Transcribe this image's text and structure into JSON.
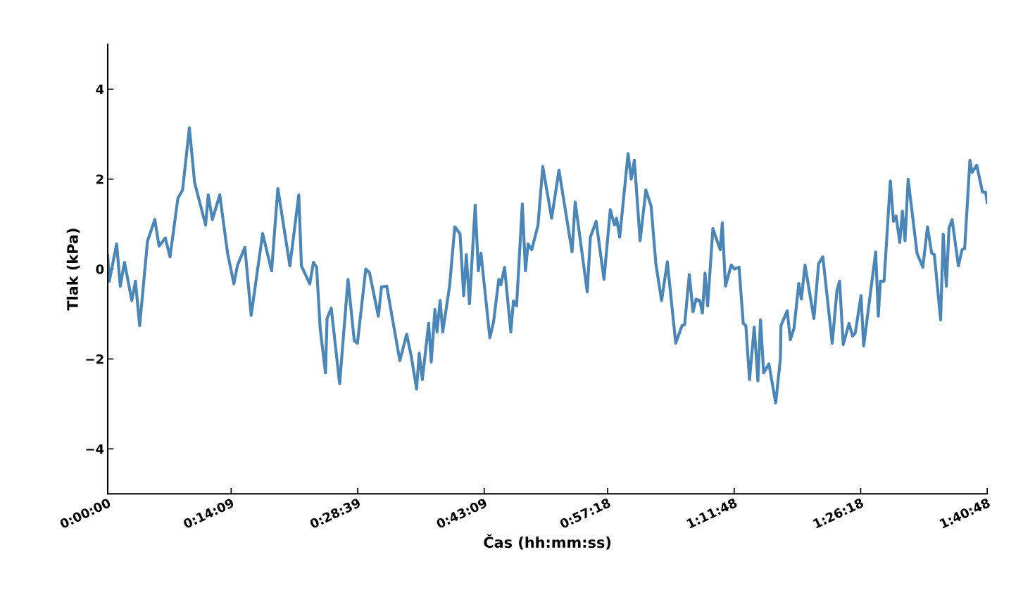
{
  "chart_data": {
    "type": "line",
    "xlabel": "Čas (hh:mm:ss)",
    "ylabel": "Tlak (kPa)",
    "x": [
      0,
      0.003,
      0.017,
      0.024,
      0.032,
      0.046,
      0.053,
      0.061,
      0.076,
      0.09,
      0.098,
      0.11,
      0.119,
      0.134,
      0.143,
      0.156,
      0.166,
      0.187,
      0.192,
      0.2,
      0.214,
      0.229,
      0.241,
      0.248,
      0.262,
      0.274,
      0.296,
      0.313,
      0.325,
      0.348,
      0.365,
      0.37,
      0.386,
      0.393,
      0.399,
      0.406,
      0.416,
      0.419,
      0.427,
      0.443,
      0.459,
      0.471,
      0.477,
      0.493,
      0.5,
      0.517,
      0.523,
      0.533,
      0.558,
      0.571,
      0.58,
      0.59,
      0.595,
      0.601,
      0.613,
      0.618,
      0.625,
      0.629,
      0.635,
      0.64,
      0.653,
      0.663,
      0.673,
      0.68,
      0.685,
      0.691,
      0.702,
      0.708,
      0.713,
      0.73,
      0.737,
      0.747,
      0.751,
      0.758,
      0.77,
      0.775,
      0.781,
      0.792,
      0.798,
      0.803,
      0.81,
      0.822,
      0.831,
      0.848,
      0.862,
      0.887,
      0.893,
      0.916,
      0.922,
      0.933,
      0.948,
      0.96,
      0.968,
      0.972,
      0.978,
      0.994,
      1.0,
      1.006,
      1.017,
      1.028,
      1.038,
      1.047,
      1.058,
      1.069,
      1.085,
      1.097,
      1.102,
      1.111,
      1.118,
      1.124,
      1.131,
      1.136,
      1.141,
      1.146,
      1.156,
      1.17,
      1.174,
      1.18,
      1.191,
      1.197,
      1.206,
      1.214,
      1.219,
      1.226,
      1.235,
      1.242,
      1.247,
      1.253,
      1.263,
      1.276,
      1.285,
      1.286,
      1.298,
      1.304,
      1.311,
      1.32,
      1.325,
      1.332,
      1.349,
      1.358,
      1.366,
      1.384,
      1.393,
      1.398,
      1.405,
      1.416,
      1.423,
      1.428,
      1.439,
      1.444,
      1.456,
      1.467,
      1.472,
      1.476,
      1.483,
      1.495,
      1.501,
      1.506,
      1.513,
      1.518,
      1.523,
      1.529,
      1.546,
      1.557,
      1.566,
      1.574,
      1.579,
      1.591,
      1.596,
      1.602,
      1.607,
      1.613,
      1.625,
      1.632,
      1.637,
      1.647,
      1.651,
      1.66,
      1.671,
      1.677,
      1.68
    ],
    "series": [
      {
        "color": "#4a86b8",
        "values": [
          0.3,
          -0.27,
          0.56,
          -0.38,
          0.15,
          -0.7,
          -0.27,
          -1.26,
          0.62,
          1.1,
          0.51,
          0.69,
          0.27,
          1.57,
          1.76,
          3.14,
          1.92,
          0.98,
          1.65,
          1.1,
          1.65,
          0.35,
          -0.33,
          0.09,
          0.48,
          -1.03,
          0.79,
          -0.04,
          1.79,
          0.07,
          1.65,
          0.07,
          -0.33,
          0.15,
          0.04,
          -1.34,
          -2.31,
          -1.1,
          -0.87,
          -2.55,
          -0.23,
          -1.6,
          -1.65,
          0.0,
          -0.08,
          -1.05,
          -0.4,
          -0.38,
          -2.04,
          -1.45,
          -1.95,
          -2.67,
          -1.87,
          -2.46,
          -1.21,
          -2.07,
          -0.9,
          -1.4,
          -0.7,
          -1.4,
          -0.38,
          0.94,
          0.78,
          -0.59,
          0.32,
          -0.77,
          1.42,
          -0.04,
          0.35,
          -1.53,
          -1.18,
          -0.23,
          -0.35,
          0.04,
          -1.4,
          -0.71,
          -0.82,
          1.45,
          -0.04,
          0.56,
          0.43,
          0.98,
          2.28,
          1.13,
          2.2,
          0.38,
          1.49,
          -0.51,
          0.71,
          1.06,
          -0.23,
          1.32,
          0.98,
          1.13,
          0.71,
          2.57,
          2.0,
          2.42,
          0.63,
          1.76,
          1.4,
          0.12,
          -0.7,
          0.16,
          -1.65,
          -1.26,
          -1.24,
          -0.12,
          -0.95,
          -0.67,
          -0.7,
          -0.98,
          -0.09,
          -0.82,
          0.9,
          0.43,
          1.03,
          -0.38,
          0.09,
          0.0,
          0.04,
          -1.21,
          -1.26,
          -2.46,
          -1.29,
          -2.49,
          -1.13,
          -2.31,
          -2.11,
          -2.98,
          -1.99,
          -1.26,
          -0.93,
          -1.57,
          -1.32,
          -0.32,
          -0.67,
          0.09,
          -1.1,
          0.12,
          0.27,
          -1.65,
          -0.48,
          -0.27,
          -1.68,
          -1.21,
          -1.49,
          -1.42,
          -0.59,
          -1.71,
          -0.62,
          0.38,
          -1.05,
          -0.27,
          -0.27,
          1.96,
          1.06,
          1.18,
          0.59,
          1.29,
          0.63,
          2.0,
          0.35,
          0.04,
          0.94,
          0.35,
          0.32,
          -1.13,
          0.78,
          -0.38,
          0.9,
          1.1,
          0.07,
          0.43,
          0.46,
          2.42,
          2.15,
          2.31,
          1.71,
          1.71,
          1.48
        ]
      }
    ],
    "xlim": [
      0,
      1.68
    ],
    "ylim": [
      -5,
      5
    ],
    "xticks": [
      {
        "value": 0,
        "label": "0:00:00"
      },
      {
        "value": 0.2358,
        "label": "0:14:09"
      },
      {
        "value": 0.4775,
        "label": "0:28:39"
      },
      {
        "value": 0.7192,
        "label": "0:43:09"
      },
      {
        "value": 0.955,
        "label": "0:57:18"
      },
      {
        "value": 1.1967,
        "label": "1:11:48"
      },
      {
        "value": 1.4383,
        "label": "1:26:18"
      },
      {
        "value": 1.68,
        "label": "1:40:48"
      }
    ],
    "yticks": [
      -4,
      -2,
      0,
      2,
      4
    ],
    "grid": false,
    "marker": "none",
    "line_style": "solid"
  }
}
